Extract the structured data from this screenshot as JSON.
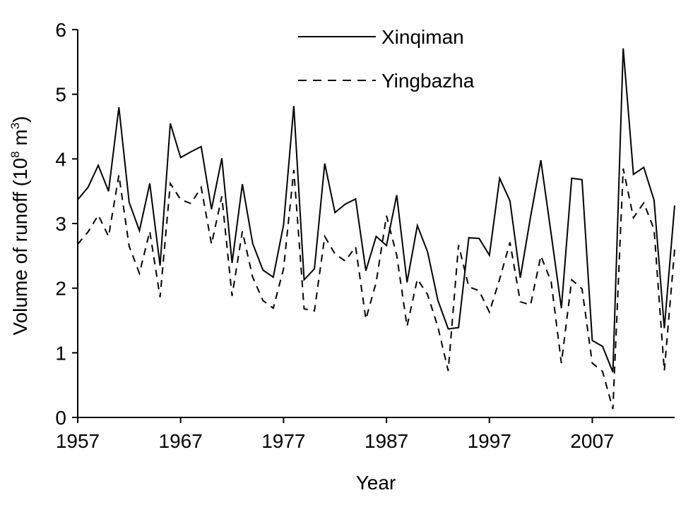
{
  "chart_data": {
    "type": "line",
    "xlabel": "Year",
    "ylabel_main": "Volume of runoff (10",
    "ylabel_exp": "8",
    "ylabel_unit": " m",
    "ylabel_unit_exp": "3",
    "ylabel_close": ")",
    "xlim": [
      1957,
      2015
    ],
    "ylim": [
      0,
      6
    ],
    "x_ticks": [
      1957,
      1967,
      1977,
      1987,
      1997,
      2007
    ],
    "y_ticks": [
      0,
      1,
      2,
      3,
      4,
      5,
      6
    ],
    "legend_position": "top-center",
    "x": [
      1957,
      1958,
      1959,
      1960,
      1961,
      1962,
      1963,
      1964,
      1965,
      1966,
      1967,
      1968,
      1969,
      1970,
      1971,
      1972,
      1973,
      1974,
      1975,
      1976,
      1977,
      1978,
      1979,
      1980,
      1981,
      1982,
      1983,
      1984,
      1985,
      1986,
      1987,
      1988,
      1989,
      1990,
      1991,
      1992,
      1993,
      1994,
      1995,
      1996,
      1997,
      1998,
      1999,
      2000,
      2001,
      2002,
      2003,
      2004,
      2005,
      2006,
      2007,
      2008,
      2009,
      2010,
      2011,
      2012,
      2013,
      2014,
      2015
    ],
    "series": [
      {
        "name": "Xinqiman",
        "style": "solid",
        "color": "#000000",
        "values": [
          3.37,
          3.56,
          3.9,
          3.5,
          4.8,
          3.33,
          2.89,
          3.62,
          2.35,
          4.55,
          4.02,
          4.11,
          4.19,
          3.22,
          4.01,
          2.39,
          3.61,
          2.69,
          2.28,
          2.17,
          2.98,
          4.82,
          2.13,
          2.3,
          3.93,
          3.17,
          3.3,
          3.38,
          2.27,
          2.8,
          2.66,
          3.44,
          2.09,
          2.97,
          2.56,
          1.81,
          1.37,
          1.39,
          2.78,
          2.77,
          2.51,
          3.7,
          3.35,
          2.16,
          3.1,
          3.98,
          2.84,
          1.69,
          3.7,
          3.68,
          1.19,
          1.1,
          0.7,
          5.71,
          3.76,
          3.87,
          3.36,
          1.38,
          3.28
        ]
      },
      {
        "name": "Yingbazha",
        "style": "dashed",
        "color": "#000000",
        "values": [
          2.68,
          2.87,
          3.13,
          2.8,
          3.75,
          2.65,
          2.23,
          2.88,
          1.86,
          3.62,
          3.37,
          3.31,
          3.56,
          2.68,
          3.42,
          1.88,
          2.88,
          2.17,
          1.81,
          1.69,
          2.3,
          3.83,
          1.68,
          1.65,
          2.8,
          2.53,
          2.42,
          2.64,
          1.52,
          2.09,
          3.12,
          2.51,
          1.41,
          2.14,
          1.9,
          1.4,
          0.72,
          2.67,
          2.02,
          1.96,
          1.63,
          2.14,
          2.71,
          1.79,
          1.74,
          2.5,
          2.1,
          0.84,
          2.13,
          1.99,
          0.84,
          0.71,
          0.13,
          3.85,
          3.09,
          3.32,
          2.91,
          0.72,
          2.6
        ]
      }
    ]
  }
}
